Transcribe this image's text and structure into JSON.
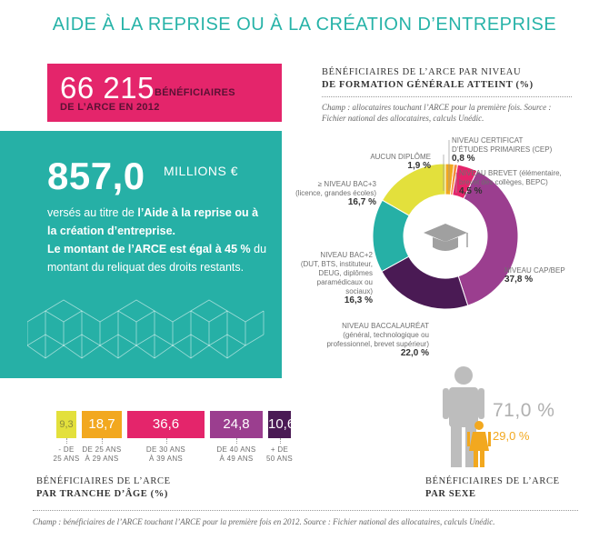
{
  "title": "AIDE À LA REPRISE OU À LA CRÉATION D’ENTREPRISE",
  "beneficiaries": {
    "number": "66 215",
    "label_line1": "BÉNÉFICIAIRES",
    "label_line2": "DE L’ARCE EN 2012"
  },
  "amount": {
    "value": "857,0",
    "unit": "MILLIONS €",
    "text_part1": "versés au titre de ",
    "text_bold1": "l’Aide à la reprise ou à la création d’entreprise.",
    "text_bold2": "Le montant de l’ARCE est égal à 45 %",
    "text_part2": " du montant du reliquat des droits restants."
  },
  "education": {
    "title_line1": "BÉNÉFICIAIRES DE L’ARCE PAR NIVEAU",
    "title_line2": "DE FORMATION GÉNÉRALE ATTEINT (%)",
    "note": "Champ : allocataires touchant l’ARCE pour la première fois. Source : Fichier national des allocataires, calculs Unédic."
  },
  "chart_data": [
    {
      "type": "pie",
      "title": "BÉNÉFICIAIRES DE L’ARCE PAR NIVEAU DE FORMATION GÉNÉRALE ATTEINT (%)",
      "slices": [
        {
          "label": "AUCUN DIPLÔME",
          "value": 1.9,
          "display": "1,9 %",
          "color": "#f2a81f"
        },
        {
          "label": "NIVEAU CERTIFICAT D’ÉTUDES PRIMAIRES (CEP)",
          "value": 0.8,
          "display": "0,8 %",
          "color": "#f58a3c"
        },
        {
          "label": "NIVEAU BREVET (élémentaire, brevet des collèges, BEPC)",
          "value": 4.5,
          "display": "4,5 %",
          "color": "#e4256b"
        },
        {
          "label": "NIVEAU CAP/BEP",
          "value": 37.8,
          "display": "37,8 %",
          "color": "#9b3e8f"
        },
        {
          "label": "NIVEAU BACCALAURÉAT (général, technologique ou professionnel, brevet supérieur)",
          "value": 22.0,
          "display": "22,0 %",
          "color": "#4a1a54"
        },
        {
          "label": "NIVEAU BAC+2 (DUT, BTS, instituteur, DEUG, diplômes paramédicaux ou sociaux)",
          "value": 16.3,
          "display": "16,3 %",
          "color": "#26b0a6"
        },
        {
          "label": "≥ NIVEAU BAC+3 (licence, grandes écoles)",
          "value": 16.7,
          "display": "16,7 %",
          "color": "#e3e03c"
        }
      ]
    },
    {
      "type": "bar",
      "title": "BÉNÉFICIAIRES DE L’ARCE PAR TRANCHE D’ÂGE (%)",
      "categories": [
        "- DE 25 ANS",
        "DE 25 ANS À 29 ANS",
        "DE 30 ANS À 39 ANS",
        "DE 40 ANS À 49 ANS",
        "+ DE 50 ANS"
      ],
      "values": [
        9.3,
        18.7,
        36.6,
        24.8,
        10.6
      ],
      "display": [
        "9,3",
        "18,7",
        "36,6",
        "24,8",
        "10,6"
      ],
      "colors": [
        "#e3e03c",
        "#f2a81f",
        "#e4256b",
        "#9b3e8f",
        "#4a1a54"
      ]
    },
    {
      "type": "bar",
      "title": "BÉNÉFICIAIRES DE L’ARCE PAR SEXE",
      "categories": [
        "Hommes",
        "Femmes"
      ],
      "values": [
        71.0,
        29.0
      ],
      "display": [
        "71,0 %",
        "29,0 %"
      ],
      "colors": [
        "#bdbdbd",
        "#f2a81f"
      ]
    }
  ],
  "labels": {
    "aucun": {
      "line1": "AUCUN DIPLÔME",
      "value": "1,9 %"
    },
    "cep": {
      "line1": "NIVEAU CERTIFICAT",
      "line2": "D’ÉTUDES PRIMAIRES (CEP)",
      "value": "0,8 %"
    },
    "brevet": {
      "line1": "NIVEAU BREVET (élémentaire,",
      "line2": "brevet des collèges, BEPC)",
      "value": "4,5 %"
    },
    "cap": {
      "line1": "NIVEAU CAP/BEP",
      "value": "37,8 %"
    },
    "bac": {
      "line1": "NIVEAU BACCALAURÉAT",
      "line2": "(général, technologique ou",
      "line3": "professionnel, brevet supérieur)",
      "value": "22,0 %"
    },
    "bac2": {
      "line1": "NIVEAU BAC+2",
      "line2": "(DUT, BTS, instituteur,",
      "line3": "DEUG, diplômes",
      "line4": "paramédicaux ou",
      "line5": "sociaux)",
      "value": "16,3 %"
    },
    "bac3": {
      "line1": "≥ NIVEAU BAC+3",
      "line2": "(licence, grandes écoles)",
      "value": "16,7 %"
    }
  },
  "age": {
    "title_line1": "BÉNÉFICIAIRES DE L’ARCE",
    "title_line2": "PAR TRANCHE D’ÂGE (%)",
    "labels": [
      [
        "- DE",
        "25 ANS"
      ],
      [
        "DE 25 ANS",
        "À 29 ANS"
      ],
      [
        "DE 30 ANS",
        "À 39 ANS"
      ],
      [
        "DE 40 ANS",
        "À 49 ANS"
      ],
      [
        "+ DE",
        "50 ANS"
      ]
    ]
  },
  "sex": {
    "title_line1": "BÉNÉFICIAIRES DE L’ARCE",
    "title_line2": "PAR SEXE",
    "male_value": "71,0 %",
    "female_value": "29,0 %",
    "male_color": "#bdbdbd",
    "female_color": "#f2a81f"
  },
  "footer": "Champ : bénéficiaires de l’ARCE touchant l’ARCE pour la première fois en 2012. Source : Fichier national des allocataires, calculs Unédic."
}
